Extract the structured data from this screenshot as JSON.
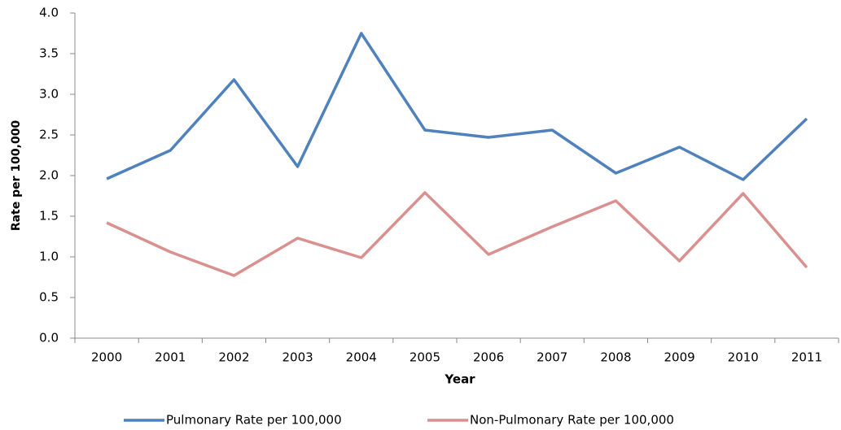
{
  "chart_data": {
    "type": "line",
    "x_label": "Year",
    "y_label": "Rate per 100,000",
    "categories": [
      "2000",
      "2001",
      "2002",
      "2003",
      "2004",
      "2005",
      "2006",
      "2007",
      "2008",
      "2009",
      "2010",
      "2011"
    ],
    "series": [
      {
        "name": "Pulmonary Rate per 100,000",
        "color": "#4f81bd",
        "values": [
          1.96,
          2.31,
          3.18,
          2.11,
          3.75,
          2.56,
          2.47,
          2.56,
          2.03,
          2.35,
          1.95,
          2.7
        ]
      },
      {
        "name": "Non-Pulmonary Rate per 100,000",
        "color": "#d9918f",
        "values": [
          1.42,
          1.06,
          0.77,
          1.23,
          0.99,
          1.79,
          1.03,
          1.37,
          1.69,
          0.95,
          1.78,
          0.87
        ]
      }
    ],
    "ylim": [
      0,
      4
    ],
    "yticks": [
      {
        "value": 0,
        "label": "0.0"
      },
      {
        "value": 0.5,
        "label": "0.5"
      },
      {
        "value": 1,
        "label": "1.0"
      },
      {
        "value": 1.5,
        "label": "1.5"
      },
      {
        "value": 2,
        "label": "2.0"
      },
      {
        "value": 2.5,
        "label": "2.5"
      },
      {
        "value": 3,
        "label": "3.0"
      },
      {
        "value": 3.5,
        "label": "3.5"
      },
      {
        "value": 4,
        "label": "4.0"
      }
    ],
    "grid": false,
    "legend": "bottom"
  }
}
